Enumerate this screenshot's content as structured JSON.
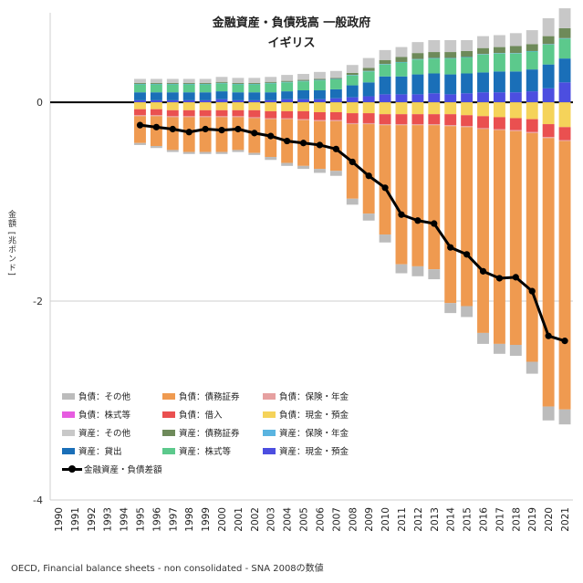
{
  "chart_data": {
    "type": "bar",
    "title": "金融資産・負債残高 一般政府",
    "subtitle": "イギリス",
    "ylabel": "金額 [兆ポンド]",
    "source": "OECD, Financial balance sheets - non consolidated - SNA 2008の数値",
    "ylim": [
      -4,
      0.9
    ],
    "yticks": [
      0,
      -2,
      -4
    ],
    "categories": [
      "1990",
      "1991",
      "1992",
      "1993",
      "1994",
      "1995",
      "1996",
      "1997",
      "1998",
      "1999",
      "2000",
      "2001",
      "2002",
      "2003",
      "2004",
      "2005",
      "2006",
      "2007",
      "2008",
      "2009",
      "2010",
      "2011",
      "2012",
      "2013",
      "2014",
      "2015",
      "2016",
      "2017",
      "2018",
      "2019",
      "2020",
      "2021"
    ],
    "stacking": "stacked, positive values above zero and negative values below zero",
    "series": [
      {
        "name": "資産：現金・預金",
        "color": "#4c4ee0",
        "values": [
          null,
          null,
          null,
          null,
          null,
          0.02,
          0.02,
          0.02,
          0.02,
          0.02,
          0.03,
          0.02,
          0.02,
          0.02,
          0.03,
          0.03,
          0.03,
          0.04,
          0.05,
          0.06,
          0.08,
          0.08,
          0.08,
          0.09,
          0.08,
          0.09,
          0.1,
          0.1,
          0.1,
          0.11,
          0.14,
          0.2
        ]
      },
      {
        "name": "資産：貸出",
        "color": "#1a6fb8",
        "values": [
          null,
          null,
          null,
          null,
          null,
          0.08,
          0.08,
          0.08,
          0.08,
          0.08,
          0.08,
          0.08,
          0.08,
          0.08,
          0.08,
          0.09,
          0.09,
          0.09,
          0.12,
          0.14,
          0.18,
          0.18,
          0.2,
          0.2,
          0.2,
          0.2,
          0.2,
          0.21,
          0.21,
          0.22,
          0.24,
          0.24
        ]
      },
      {
        "name": "資産：株式等",
        "color": "#5cc98c",
        "values": [
          null,
          null,
          null,
          null,
          null,
          0.08,
          0.08,
          0.08,
          0.08,
          0.08,
          0.08,
          0.08,
          0.08,
          0.09,
          0.09,
          0.09,
          0.1,
          0.1,
          0.1,
          0.11,
          0.12,
          0.14,
          0.15,
          0.15,
          0.16,
          0.16,
          0.18,
          0.18,
          0.18,
          0.18,
          0.2,
          0.2
        ]
      },
      {
        "name": "資産：保険・年金",
        "color": "#5ab4e0",
        "values": [
          null,
          null,
          null,
          null,
          null,
          0.005,
          0.005,
          0.005,
          0.005,
          0.005,
          0.005,
          0.005,
          0.005,
          0.005,
          0.005,
          0.005,
          0.005,
          0.005,
          0.005,
          0.005,
          0.005,
          0.005,
          0.005,
          0.005,
          0.005,
          0.005,
          0.005,
          0.005,
          0.005,
          0.005,
          0.005,
          0.005
        ]
      },
      {
        "name": "資産：債務証券",
        "color": "#6e8a5a",
        "values": [
          null,
          null,
          null,
          null,
          null,
          0.01,
          0.01,
          0.01,
          0.01,
          0.01,
          0.01,
          0.01,
          0.01,
          0.01,
          0.01,
          0.01,
          0.01,
          0.01,
          0.02,
          0.03,
          0.04,
          0.05,
          0.06,
          0.06,
          0.06,
          0.06,
          0.06,
          0.06,
          0.07,
          0.07,
          0.08,
          0.1
        ]
      },
      {
        "name": "資産：その他",
        "color": "#c8c8c8",
        "values": [
          null,
          null,
          null,
          null,
          null,
          0.04,
          0.04,
          0.04,
          0.04,
          0.04,
          0.05,
          0.05,
          0.05,
          0.05,
          0.06,
          0.06,
          0.07,
          0.07,
          0.08,
          0.1,
          0.1,
          0.1,
          0.11,
          0.12,
          0.12,
          0.11,
          0.12,
          0.12,
          0.13,
          0.14,
          0.18,
          0.2
        ]
      },
      {
        "name": "負債：現金・預金",
        "color": "#f5d35a",
        "values": [
          null,
          null,
          null,
          null,
          null,
          -0.07,
          -0.07,
          -0.08,
          -0.08,
          -0.08,
          -0.08,
          -0.08,
          -0.08,
          -0.09,
          -0.09,
          -0.09,
          -0.1,
          -0.1,
          -0.11,
          -0.11,
          -0.12,
          -0.12,
          -0.12,
          -0.12,
          -0.12,
          -0.13,
          -0.14,
          -0.15,
          -0.16,
          -0.17,
          -0.22,
          -0.25
        ]
      },
      {
        "name": "負債：借入",
        "color": "#ea5050",
        "values": [
          null,
          null,
          null,
          null,
          null,
          -0.06,
          -0.06,
          -0.06,
          -0.06,
          -0.06,
          -0.06,
          -0.06,
          -0.07,
          -0.07,
          -0.07,
          -0.08,
          -0.08,
          -0.08,
          -0.1,
          -0.1,
          -0.1,
          -0.1,
          -0.1,
          -0.1,
          -0.11,
          -0.11,
          -0.12,
          -0.12,
          -0.12,
          -0.13,
          -0.13,
          -0.13
        ]
      },
      {
        "name": "負債：株式等",
        "color": "#e65ce0",
        "values": [
          null,
          null,
          null,
          null,
          null,
          0,
          0,
          0,
          0,
          0,
          0,
          0,
          0,
          0,
          0,
          0,
          0,
          0,
          0,
          0,
          0,
          0,
          0,
          0,
          0,
          0,
          0,
          0,
          0,
          0,
          0,
          0
        ]
      },
      {
        "name": "負債：保険・年金",
        "color": "#e6a0a0",
        "values": [
          null,
          null,
          null,
          null,
          null,
          -0.01,
          -0.01,
          -0.01,
          -0.01,
          -0.01,
          -0.01,
          -0.01,
          -0.01,
          -0.01,
          -0.01,
          -0.01,
          -0.01,
          -0.01,
          -0.01,
          -0.01,
          -0.01,
          -0.01,
          -0.01,
          -0.01,
          -0.01,
          -0.01,
          -0.01,
          -0.01,
          -0.01,
          -0.01,
          -0.01,
          -0.01
        ]
      },
      {
        "name": "負債：債務証券",
        "color": "#ef9a50",
        "values": [
          null,
          null,
          null,
          null,
          null,
          -0.27,
          -0.3,
          -0.33,
          -0.35,
          -0.35,
          -0.35,
          -0.33,
          -0.35,
          -0.38,
          -0.44,
          -0.46,
          -0.48,
          -0.5,
          -0.75,
          -0.9,
          -1.1,
          -1.4,
          -1.42,
          -1.45,
          -1.78,
          -1.8,
          -2.05,
          -2.15,
          -2.15,
          -2.3,
          -2.7,
          -2.7
        ]
      },
      {
        "name": "負債：その他",
        "color": "#bcbcbc",
        "values": [
          null,
          null,
          null,
          null,
          null,
          -0.02,
          -0.02,
          -0.02,
          -0.02,
          -0.02,
          -0.02,
          -0.02,
          -0.02,
          -0.03,
          -0.03,
          -0.03,
          -0.04,
          -0.05,
          -0.06,
          -0.07,
          -0.08,
          -0.09,
          -0.1,
          -0.1,
          -0.1,
          -0.11,
          -0.11,
          -0.1,
          -0.11,
          -0.12,
          -0.14,
          -0.15
        ]
      }
    ],
    "line": {
      "name": "金融資産・負債差額",
      "color": "#000000",
      "values": [
        null,
        null,
        null,
        null,
        null,
        -0.23,
        -0.25,
        -0.27,
        -0.3,
        -0.27,
        -0.28,
        -0.27,
        -0.31,
        -0.34,
        -0.39,
        -0.41,
        -0.43,
        -0.47,
        -0.6,
        -0.74,
        -0.86,
        -1.13,
        -1.19,
        -1.22,
        -1.46,
        -1.53,
        -1.7,
        -1.77,
        -1.76,
        -1.9,
        -2.35,
        -2.4
      ]
    },
    "legend_position": "bottom-left inside plot",
    "grid": "horizontal gridlines at y ticks"
  }
}
